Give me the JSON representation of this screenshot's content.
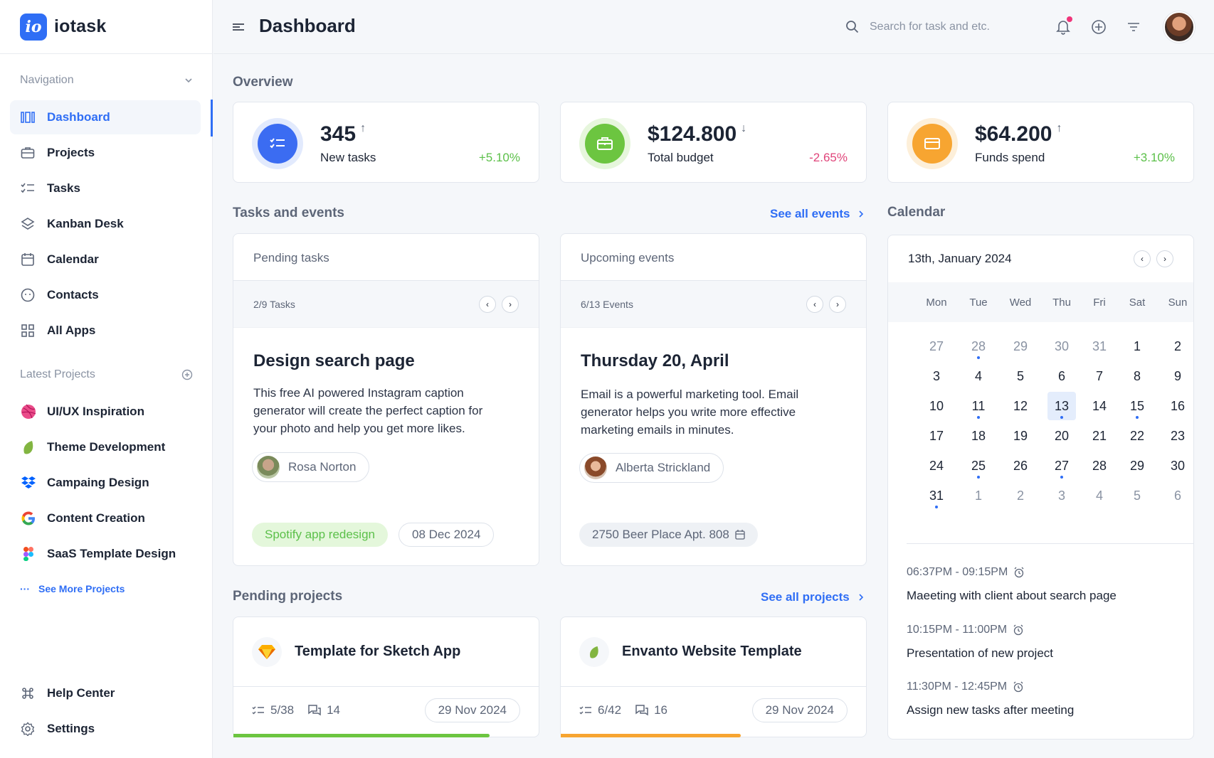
{
  "brand": {
    "logo_text": "io",
    "name": "iotask"
  },
  "sidebar": {
    "nav_section": "Navigation",
    "items": [
      {
        "label": "Dashboard",
        "icon": "dashboard-icon",
        "active": true
      },
      {
        "label": "Projects",
        "icon": "briefcase-icon"
      },
      {
        "label": "Tasks",
        "icon": "checklist-icon"
      },
      {
        "label": "Kanban Desk",
        "icon": "layers-icon"
      },
      {
        "label": "Calendar",
        "icon": "calendar-icon"
      },
      {
        "label": "Contacts",
        "icon": "smiley-icon"
      },
      {
        "label": "All Apps",
        "icon": "grid-icon"
      }
    ],
    "projects_section": "Latest Projects",
    "projects": [
      {
        "label": "UI/UX Inspiration",
        "icon": "dribbble-icon"
      },
      {
        "label": "Theme Development",
        "icon": "envato-leaf-icon"
      },
      {
        "label": "Campaing Design",
        "icon": "dropbox-icon"
      },
      {
        "label": "Content Creation",
        "icon": "google-icon"
      },
      {
        "label": "SaaS Template Design",
        "icon": "figma-icon"
      }
    ],
    "see_more": "See More Projects",
    "bottom": [
      {
        "label": "Help Center",
        "icon": "command-icon"
      },
      {
        "label": "Settings",
        "icon": "gear-icon"
      }
    ]
  },
  "header": {
    "title": "Dashboard",
    "search_placeholder": "Search for task and etc."
  },
  "overview": {
    "title": "Overview",
    "stats": [
      {
        "value": "345",
        "arrow": "↑",
        "label": "New tasks",
        "change": "+5.10%",
        "color": "#3b6cf2",
        "ring": "#e2eafd",
        "change_color": "#5cc04a"
      },
      {
        "value": "$124.800",
        "arrow": "↓",
        "label": "Total budget",
        "change": "-2.65%",
        "color": "#6cc540",
        "ring": "#e6f6dc",
        "change_color": "#e0457a"
      },
      {
        "value": "$64.200",
        "arrow": "↑",
        "label": "Funds spend",
        "change": "+3.10%",
        "color": "#f7a531",
        "ring": "#fdefd9",
        "change_color": "#5cc04a"
      }
    ]
  },
  "tasks_events": {
    "title": "Tasks and events",
    "see_all": "See all events",
    "pending": {
      "header": "Pending tasks",
      "counter": "2/9 Tasks",
      "title": "Design search page",
      "description": "This free AI powered Instagram caption generator will create the perfect caption for your photo and help you get more likes.",
      "person": "Rosa Norton",
      "tag": "Spotify app redesign",
      "date": "08 Dec 2024"
    },
    "upcoming": {
      "header": "Upcoming events",
      "counter": "6/13 Events",
      "title": "Thursday 20, April",
      "description": "Email is a powerful marketing tool. Email generator helps you write more effective marketing emails in minutes.",
      "person": "Alberta Strickland",
      "location": "2750 Beer Place Apt. 808"
    }
  },
  "calendar": {
    "title": "Calendar",
    "current": "13th, January 2024",
    "weekdays": [
      "Mon",
      "Tue",
      "Wed",
      "Thu",
      "Fri",
      "Sat",
      "Sun"
    ],
    "weeks": [
      [
        {
          "d": "27",
          "m": true
        },
        {
          "d": "28",
          "m": true,
          "dot": true
        },
        {
          "d": "29",
          "m": true
        },
        {
          "d": "30",
          "m": true
        },
        {
          "d": "31",
          "m": true
        },
        {
          "d": "1"
        },
        {
          "d": "2"
        }
      ],
      [
        {
          "d": "3"
        },
        {
          "d": "4"
        },
        {
          "d": "5"
        },
        {
          "d": "6"
        },
        {
          "d": "7"
        },
        {
          "d": "8"
        },
        {
          "d": "9"
        }
      ],
      [
        {
          "d": "10"
        },
        {
          "d": "11",
          "dot": true
        },
        {
          "d": "12"
        },
        {
          "d": "13",
          "today": true,
          "dot": true
        },
        {
          "d": "14"
        },
        {
          "d": "15",
          "dot": true
        },
        {
          "d": "16"
        }
      ],
      [
        {
          "d": "17"
        },
        {
          "d": "18"
        },
        {
          "d": "19"
        },
        {
          "d": "20"
        },
        {
          "d": "21"
        },
        {
          "d": "22"
        },
        {
          "d": "23"
        }
      ],
      [
        {
          "d": "24"
        },
        {
          "d": "25",
          "dot": true
        },
        {
          "d": "26"
        },
        {
          "d": "27",
          "dot": true
        },
        {
          "d": "28"
        },
        {
          "d": "29"
        },
        {
          "d": "30"
        }
      ],
      [
        {
          "d": "31",
          "dot": true
        },
        {
          "d": "1",
          "m": true
        },
        {
          "d": "2",
          "m": true
        },
        {
          "d": "3",
          "m": true
        },
        {
          "d": "4",
          "m": true
        },
        {
          "d": "5",
          "m": true
        },
        {
          "d": "6",
          "m": true
        }
      ]
    ],
    "events": [
      {
        "time": "06:37PM - 09:15PM",
        "title": "Maeeting with client about search page"
      },
      {
        "time": "10:15PM - 11:00PM",
        "title": "Presentation of new project"
      },
      {
        "time": "11:30PM - 12:45PM",
        "title": "Assign new tasks after meeting"
      }
    ]
  },
  "pending_projects": {
    "title": "Pending projects",
    "see_all": "See all projects",
    "items": [
      {
        "name": "Template for Sketch App",
        "icon": "sketch-icon",
        "tasks": "5/38",
        "comments": "14",
        "date": "29 Nov 2024",
        "progress": 0.84,
        "color": "#6cc540"
      },
      {
        "name": "Envanto Website Template",
        "icon": "envato-leaf-icon",
        "tasks": "6/42",
        "comments": "16",
        "date": "29 Nov 2024",
        "progress": 0.59,
        "color": "#f7a531"
      }
    ]
  }
}
